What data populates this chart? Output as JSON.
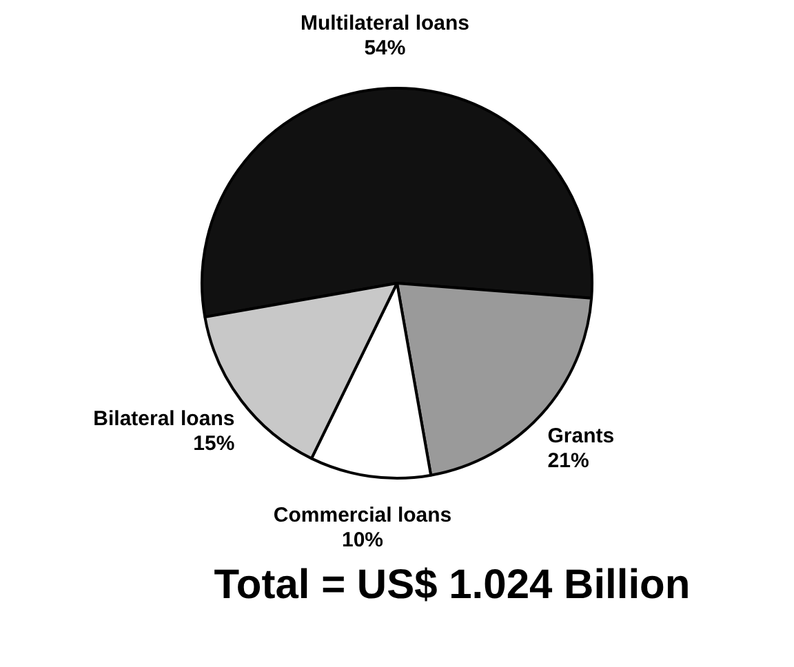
{
  "chart_data": {
    "type": "pie",
    "categories": [
      "Multilateral loans",
      "Grants",
      "Commercial loans",
      "Bilateral loans"
    ],
    "values": [
      54,
      21,
      10,
      15
    ],
    "value_labels": [
      "54%",
      "21%",
      "10%",
      "15%"
    ],
    "colors": [
      "#111111",
      "#9a9a9a",
      "#ffffff",
      "#c8c8c8"
    ],
    "legend": false,
    "annotations": [
      "Total = US$ 1.024 Billion"
    ]
  }
}
